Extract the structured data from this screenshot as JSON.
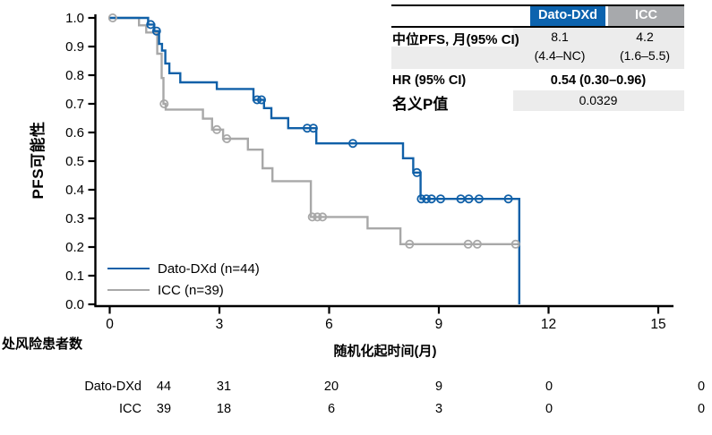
{
  "colors": {
    "dato": "#1060A8",
    "icc": "#A8A8A8",
    "header_blue": "#0C63AE",
    "header_gray": "#A7A9AC",
    "row_shade": "#ECECEC",
    "axis": "#000000"
  },
  "results_table": {
    "col_headers": [
      "Dato-DXd",
      "ICC"
    ],
    "median_row": {
      "label": "中位PFS, 月(95% CI)",
      "dato_line1": "8.1",
      "dato_line2": "(4.4–NC)",
      "icc_line1": "4.2",
      "icc_line2": "(1.6–5.5)"
    },
    "hr_row": {
      "label": "HR (95% CI)",
      "value": "0.54 (0.30–0.96)"
    },
    "p_row": {
      "label": "名义P值",
      "value": "0.0329"
    }
  },
  "legend": [
    {
      "label": "Dato-DXd (n=44)",
      "color": "#1060A8"
    },
    {
      "label": "ICC (n=39)",
      "color": "#A8A8A8"
    }
  ],
  "at_risk": {
    "title": "处风险患者数",
    "rows": [
      {
        "label": "Dato-DXd",
        "values": [
          "44",
          "31",
          "20",
          "9",
          "0",
          "0"
        ]
      },
      {
        "label": "ICC",
        "values": [
          "39",
          "18",
          "6",
          "3",
          "0",
          "0"
        ]
      }
    ]
  },
  "chart_data": {
    "type": "line",
    "subtype": "kaplan-meier-step",
    "title": "",
    "xlabel": "随机化起时间(月)",
    "ylabel": "PFS可能性",
    "x_ticks": [
      0,
      3,
      6,
      9,
      12,
      15
    ],
    "x_tick_labels": [
      "0",
      "3",
      "6",
      "9",
      "12",
      "15"
    ],
    "y_ticks": [
      0.0,
      0.1,
      0.2,
      0.3,
      0.4,
      0.5,
      0.6,
      0.7,
      0.8,
      0.9,
      1.0
    ],
    "y_tick_labels": [
      "0.0",
      "0.1",
      "0.2",
      "0.3",
      "0.4",
      "0.5",
      "0.6",
      "0.7",
      "0.8",
      "0.9",
      "1.0"
    ],
    "xlim": [
      0,
      15.5
    ],
    "ylim": [
      0,
      1
    ],
    "grid": false,
    "legend_position": "lower-left-inside",
    "series": [
      {
        "name": "Dato-DXd (n=44)",
        "color": "#1060A8",
        "levels": [
          [
            0,
            1.0
          ],
          [
            1.05,
            0.977
          ],
          [
            1.22,
            0.954
          ],
          [
            1.35,
            0.909
          ],
          [
            1.43,
            0.886
          ],
          [
            1.52,
            0.841
          ],
          [
            1.63,
            0.807
          ],
          [
            1.93,
            0.775
          ],
          [
            2.93,
            0.752
          ],
          [
            3.93,
            0.714
          ],
          [
            4.22,
            0.685
          ],
          [
            4.42,
            0.65
          ],
          [
            4.88,
            0.615
          ],
          [
            5.65,
            0.562
          ],
          [
            8.02,
            0.51
          ],
          [
            8.3,
            0.46
          ],
          [
            8.5,
            0.368
          ],
          [
            11.2,
            0.0
          ]
        ],
        "end_x": 11.2,
        "censors": [
          [
            1.12,
            0.977
          ],
          [
            1.28,
            0.954
          ],
          [
            4.03,
            0.714
          ],
          [
            4.15,
            0.714
          ],
          [
            5.4,
            0.615
          ],
          [
            5.57,
            0.615
          ],
          [
            6.65,
            0.562
          ],
          [
            8.4,
            0.46
          ],
          [
            8.52,
            0.368
          ],
          [
            8.66,
            0.368
          ],
          [
            8.8,
            0.368
          ],
          [
            9.05,
            0.368
          ],
          [
            9.6,
            0.368
          ],
          [
            9.82,
            0.368
          ],
          [
            10.1,
            0.368
          ],
          [
            10.9,
            0.368
          ]
        ]
      },
      {
        "name": "ICC (n=39)",
        "color": "#A8A8A8",
        "levels": [
          [
            0,
            1.0
          ],
          [
            0.8,
            0.974
          ],
          [
            1.0,
            0.949
          ],
          [
            1.3,
            0.875
          ],
          [
            1.42,
            0.79
          ],
          [
            1.47,
            0.7
          ],
          [
            1.53,
            0.68
          ],
          [
            2.55,
            0.648
          ],
          [
            2.8,
            0.61
          ],
          [
            3.1,
            0.578
          ],
          [
            3.78,
            0.54
          ],
          [
            4.18,
            0.475
          ],
          [
            4.45,
            0.43
          ],
          [
            5.5,
            0.305
          ],
          [
            7.05,
            0.265
          ],
          [
            7.95,
            0.21
          ]
        ],
        "end_x": 11.2,
        "censors": [
          [
            0.08,
            1.0
          ],
          [
            1.49,
            0.7
          ],
          [
            2.93,
            0.61
          ],
          [
            3.2,
            0.578
          ],
          [
            5.54,
            0.305
          ],
          [
            5.68,
            0.305
          ],
          [
            5.82,
            0.305
          ],
          [
            8.2,
            0.21
          ],
          [
            9.8,
            0.21
          ],
          [
            10.05,
            0.21
          ],
          [
            11.1,
            0.21
          ]
        ]
      }
    ]
  }
}
